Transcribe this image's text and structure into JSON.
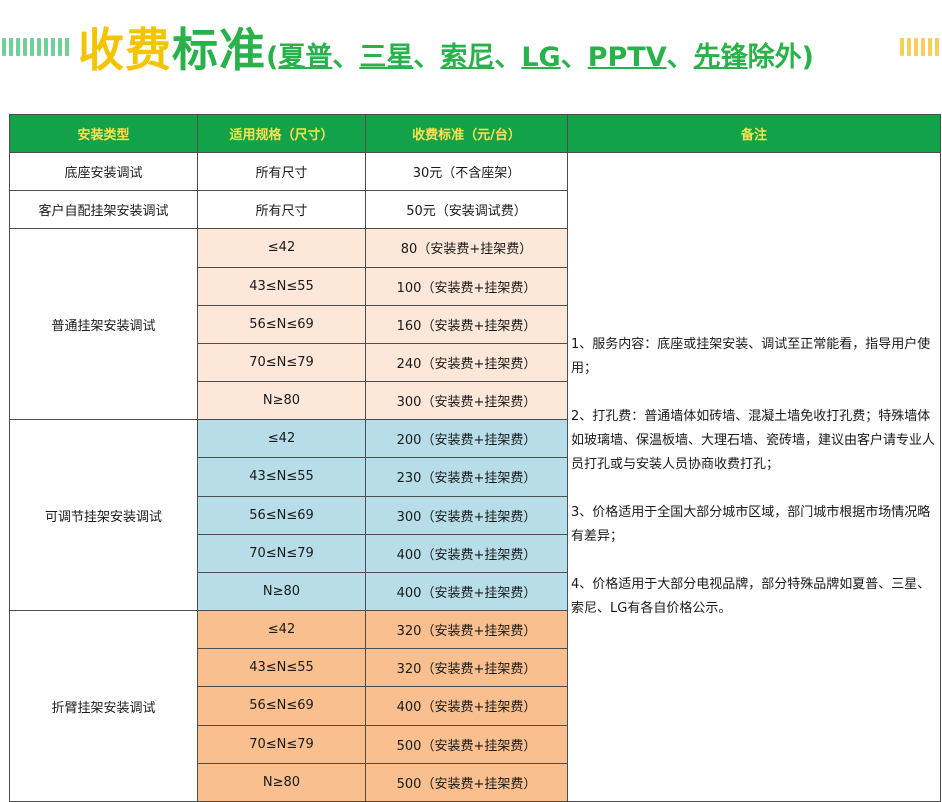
{
  "title": {
    "part1": "收费",
    "part2": "标准",
    "sub_open": "(",
    "brands": [
      "夏普",
      "三星",
      "索尼",
      "LG",
      "PPTV",
      "先锋"
    ],
    "separator": "、",
    "sub_close": "除外)"
  },
  "table": {
    "headers": [
      "安装类型",
      "适用规格（尺寸）",
      "收费标准（元/台）",
      "备注"
    ],
    "rows_simple": [
      {
        "type": "底座安装调试",
        "spec": "所有尺寸",
        "price": "30元（不含座架）"
      },
      {
        "type": "客户自配挂架安装调试",
        "spec": "所有尺寸",
        "price": "50元（安装调试费）"
      }
    ],
    "groups": [
      {
        "type": "普通挂架安装调试",
        "items": [
          {
            "spec": "≤42",
            "price": "80（安装费+挂架费）"
          },
          {
            "spec": "43≤N≤55",
            "price": "100（安装费+挂架费）"
          },
          {
            "spec": "56≤N≤69",
            "price": "160（安装费+挂架费）"
          },
          {
            "spec": "70≤N≤79",
            "price": "240（安装费+挂架费）"
          },
          {
            "spec": "N≥80",
            "price": "300（安装费+挂架费）"
          }
        ]
      },
      {
        "type": "可调节挂架安装调试",
        "items": [
          {
            "spec": "≤42",
            "price": "200（安装费+挂架费）"
          },
          {
            "spec": "43≤N≤55",
            "price": "230（安装费+挂架费）"
          },
          {
            "spec": "56≤N≤69",
            "price": "300（安装费+挂架费）"
          },
          {
            "spec": "70≤N≤79",
            "price": "400（安装费+挂架费）"
          },
          {
            "spec": "N≥80",
            "price": "400（安装费+挂架费）"
          }
        ]
      },
      {
        "type": "折臂挂架安装调试",
        "items": [
          {
            "spec": "≤42",
            "price": "320（安装费+挂架费）"
          },
          {
            "spec": "43≤N≤55",
            "price": "320（安装费+挂架费）"
          },
          {
            "spec": "56≤N≤69",
            "price": "400（安装费+挂架费）"
          },
          {
            "spec": "70≤N≤79",
            "price": "500（安装费+挂架费）"
          },
          {
            "spec": "N≥80",
            "price": "500（安装费+挂架费）"
          }
        ]
      }
    ],
    "notes": [
      "1、服务内容：底座或挂架安装、调试至正常能看，指导用户使用；",
      "2、打孔费：普通墙体如砖墙、混凝土墙免收打孔费；特殊墙体如玻璃墙、保温板墙、大理石墙、瓷砖墙，建议由客户请专业人员打孔或与安装人员协商收费打孔；",
      "3、价格适用于全国大部分城市区域，部门城市根据市场情况略有差异；",
      "4、价格适用于大部分电视品牌，部分特殊品牌如夏普、三星、索尼、LG有各自价格公示。"
    ]
  },
  "colors": {
    "header_bg": "#12a24a",
    "header_text": "#ffe14d",
    "group1_bg": "#fde7d8",
    "group2_bg": "#b6dde8",
    "group3_bg": "#f9bf8f",
    "title_yellow": "#f5c400",
    "title_green": "#29b24a"
  }
}
